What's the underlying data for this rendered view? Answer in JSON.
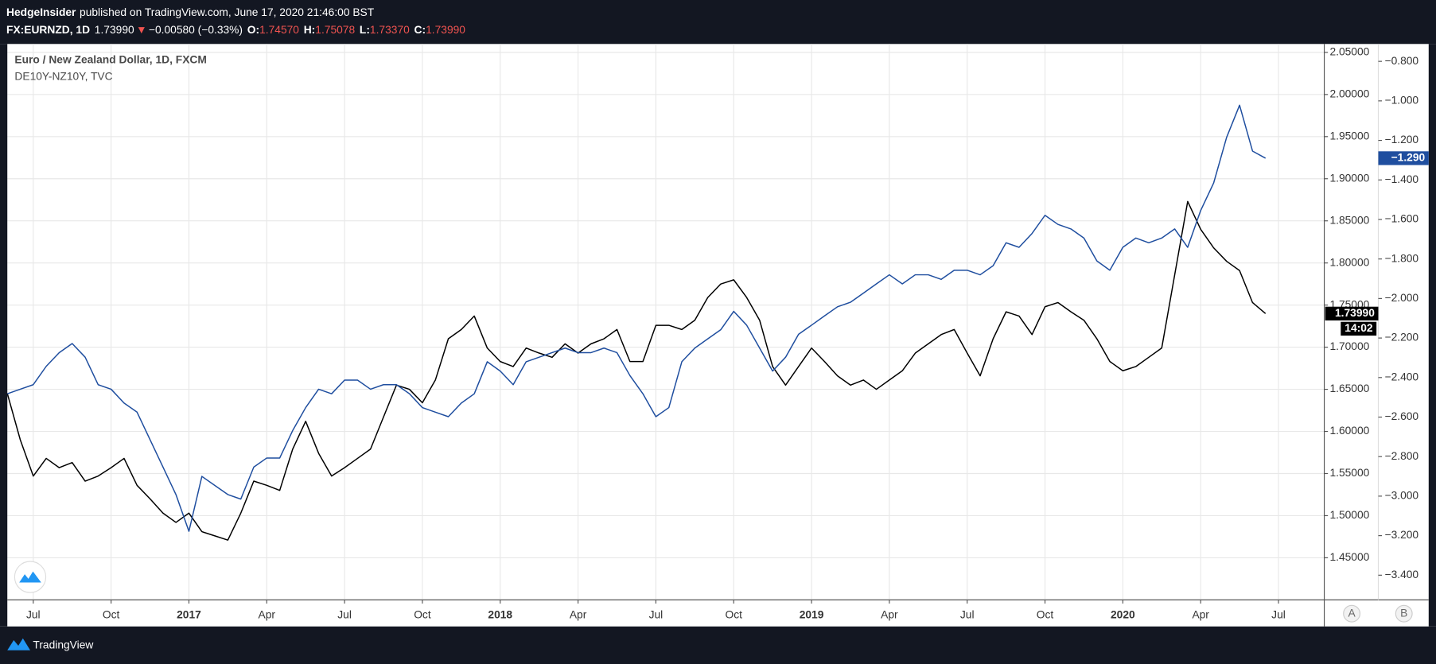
{
  "header": {
    "author": "HedgeInsider",
    "published": "published on TradingView.com, June 17, 2020 21:46:00 BST",
    "symbol": "FX:EURNZD, 1D",
    "last": "1.73990",
    "arrow": "▼",
    "change": "−0.00580 (−0.33%)",
    "open_label": "O:",
    "open": "1.74570",
    "high_label": "H:",
    "high": "1.75078",
    "low_label": "L:",
    "low": "1.73370",
    "close_label": "C:",
    "close": "1.73990"
  },
  "chart_data": {
    "type": "line",
    "categories": [
      null,
      null,
      "Jul",
      null,
      null,
      null,
      null,
      null,
      "Oct",
      null,
      null,
      null,
      null,
      null,
      "2017",
      null,
      null,
      null,
      null,
      null,
      "Apr",
      null,
      null,
      null,
      null,
      null,
      "Jul",
      null,
      null,
      null,
      null,
      null,
      "Oct",
      null,
      null,
      null,
      null,
      null,
      "2018",
      null,
      null,
      null,
      null,
      null,
      "Apr",
      null,
      null,
      null,
      null,
      null,
      "Jul",
      null,
      null,
      null,
      null,
      null,
      "Oct",
      null,
      null,
      null,
      null,
      null,
      "2019",
      null,
      null,
      null,
      null,
      null,
      "Apr",
      null,
      null,
      null,
      null,
      null,
      "Jul",
      null,
      null,
      null,
      null,
      null,
      "Oct",
      null,
      null,
      null,
      null,
      null,
      "2020",
      null,
      null,
      null,
      null,
      null,
      "Apr",
      null,
      null,
      null,
      null,
      null,
      "Jul"
    ],
    "series": [
      {
        "name": "Euro / New Zealand Dollar, 1D, FXCM",
        "color": "#000000",
        "last_label": "1.73990",
        "countdown": "14:02",
        "values": [
          1.645,
          1.59,
          1.547,
          1.568,
          1.557,
          1.563,
          1.541,
          1.547,
          1.557,
          1.568,
          1.536,
          1.52,
          1.503,
          1.492,
          1.503,
          1.481,
          1.476,
          1.471,
          1.503,
          1.541,
          1.536,
          1.53,
          1.579,
          1.612,
          1.574,
          1.547,
          1.557,
          1.568,
          1.579,
          1.617,
          1.655,
          1.65,
          1.634,
          1.661,
          1.71,
          1.721,
          1.737,
          1.699,
          1.683,
          1.677,
          1.699,
          1.693,
          1.688,
          1.704,
          1.693,
          1.704,
          1.71,
          1.721,
          1.683,
          1.683,
          1.726,
          1.726,
          1.721,
          1.732,
          1.759,
          1.775,
          1.78,
          1.759,
          1.732,
          1.677,
          1.655,
          1.677,
          1.699,
          1.683,
          1.666,
          1.655,
          1.661,
          1.65,
          1.661,
          1.672,
          1.693,
          1.704,
          1.715,
          1.721,
          1.693,
          1.666,
          1.71,
          1.742,
          1.737,
          1.715,
          1.748,
          1.753,
          1.742,
          1.732,
          1.71,
          1.683,
          1.672,
          1.677,
          1.688,
          1.699,
          1.786,
          1.873,
          1.84,
          1.818,
          1.802,
          1.791,
          1.753,
          1.7399,
          null
        ]
      },
      {
        "name": "DE10Y-NZ10Y, TVC",
        "color": "#1f4e9f",
        "axis": "y2",
        "last_label": "−1.290",
        "values": [
          -2.482,
          -2.459,
          -2.436,
          -2.343,
          -2.274,
          -2.228,
          -2.297,
          -2.436,
          -2.459,
          -2.529,
          -2.575,
          -2.714,
          -2.853,
          -2.992,
          -3.178,
          -2.9,
          -2.946,
          -2.992,
          -3.015,
          -2.853,
          -2.807,
          -2.807,
          -2.668,
          -2.552,
          -2.459,
          -2.482,
          -2.413,
          -2.413,
          -2.459,
          -2.436,
          -2.436,
          -2.482,
          -2.552,
          -2.575,
          -2.598,
          -2.529,
          -2.482,
          -2.32,
          -2.367,
          -2.436,
          -2.32,
          -2.297,
          -2.274,
          -2.251,
          -2.274,
          -2.274,
          -2.251,
          -2.274,
          -2.39,
          -2.482,
          -2.598,
          -2.552,
          -2.32,
          -2.251,
          -2.204,
          -2.158,
          -2.065,
          -2.135,
          -2.251,
          -2.367,
          -2.297,
          -2.181,
          -2.135,
          -2.088,
          -2.042,
          -2.019,
          -1.973,
          -1.926,
          -1.88,
          -1.926,
          -1.88,
          -1.88,
          -1.903,
          -1.857,
          -1.857,
          -1.88,
          -1.834,
          -1.718,
          -1.741,
          -1.671,
          -1.579,
          -1.625,
          -1.648,
          -1.694,
          -1.81,
          -1.857,
          -1.741,
          -1.694,
          -1.718,
          -1.694,
          -1.648,
          -1.741,
          -1.555,
          -1.416,
          -1.185,
          -1.022,
          -1.254,
          -1.29,
          null
        ]
      }
    ],
    "ylim": [
      1.4,
      2.06
    ],
    "yticks": [
      {
        "value": 1.45,
        "label": "1.45000"
      },
      {
        "value": 1.5,
        "label": "1.50000"
      },
      {
        "value": 1.55,
        "label": "1.55000"
      },
      {
        "value": 1.6,
        "label": "1.60000"
      },
      {
        "value": 1.65,
        "label": "1.65000"
      },
      {
        "value": 1.7,
        "label": "1.70000"
      },
      {
        "value": 1.75,
        "label": "1.75000"
      },
      {
        "value": 1.8,
        "label": "1.80000"
      },
      {
        "value": 1.85,
        "label": "1.85000"
      },
      {
        "value": 1.9,
        "label": "1.90000"
      },
      {
        "value": 1.95,
        "label": "1.95000"
      },
      {
        "value": 2.0,
        "label": "2.00000"
      },
      {
        "value": 2.05,
        "label": "2.05000"
      }
    ],
    "y2lim": [
      -3.525,
      -0.712
    ],
    "y2ticks": [
      {
        "value": -3.4,
        "label": "−3.400"
      },
      {
        "value": -3.2,
        "label": "−3.200"
      },
      {
        "value": -3.0,
        "label": "−3.000"
      },
      {
        "value": -2.8,
        "label": "−2.800"
      },
      {
        "value": -2.6,
        "label": "−2.600"
      },
      {
        "value": -2.4,
        "label": "−2.400"
      },
      {
        "value": -2.2,
        "label": "−2.200"
      },
      {
        "value": -2.0,
        "label": "−2.000"
      },
      {
        "value": -1.8,
        "label": "−1.800"
      },
      {
        "value": -1.6,
        "label": "−1.600"
      },
      {
        "value": -1.4,
        "label": "−1.400"
      },
      {
        "value": -1.2,
        "label": "−1.200"
      },
      {
        "value": -1.0,
        "label": "−1.000"
      },
      {
        "value": -0.8,
        "label": "−0.800"
      }
    ],
    "grid": true,
    "axis_buttons": [
      "A",
      "B"
    ]
  },
  "footer": {
    "brand": "TradingView"
  }
}
